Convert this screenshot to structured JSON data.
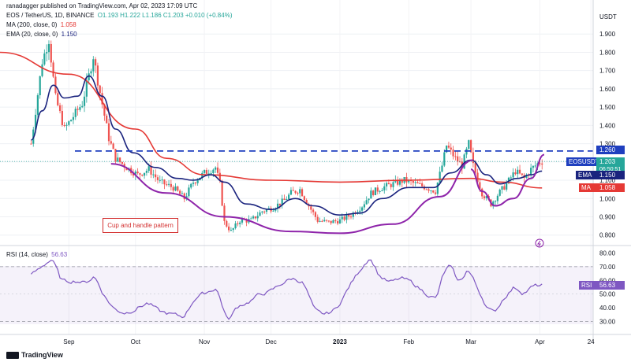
{
  "header": {
    "source": "ranadagger published on TradingView.com, Apr 02, 2023 17:09 UTC",
    "symbol_line": "EOS / TetherUS, 1D, BINANCE",
    "ohlc": "O1.193  H1.222  L1.186  C1.203  +0.010 (+0.84%)",
    "ma_label": "MA (200, close, 0)",
    "ma_value": "1.058",
    "ema_label": "EMA (20, close, 0)",
    "ema_value": "1.150",
    "rsi_label": "RSI (14, close)",
    "rsi_value": "56.63",
    "currency": "USDT"
  },
  "annotation": {
    "text": "Cup and handle pattern"
  },
  "tags": {
    "resistance": "1.260",
    "symbol": "EOSUSDT",
    "price": "1.203",
    "countdown": "06:50:51",
    "ema_name": "EMA",
    "ema_value": "1.150",
    "ma_name": "MA",
    "ma_value": "1.058",
    "rsi_name": "RSI",
    "rsi_value": "56.63"
  },
  "logo": "TradingView",
  "colors": {
    "up": "#26a69a",
    "down": "#ef5350",
    "ema": "#1a237e",
    "ma": "#e53935",
    "cup": "#8e24aa",
    "rsi": "#7e57c2",
    "resistance": "#1f3fbf"
  },
  "chart_data": {
    "type": "candlestick",
    "title": "EOS / TetherUS, 1D, BINANCE",
    "ylabel": "USDT",
    "y_ticks": [
      "0.800",
      "0.900",
      "1.000",
      "1.100",
      "1.200",
      "1.300",
      "1.400",
      "1.500",
      "1.600",
      "1.700",
      "1.800",
      "1.900"
    ],
    "x_ticks": [
      "Sep",
      "Oct",
      "Nov",
      "Dec",
      "2023",
      "Feb",
      "Mar",
      "Apr",
      "24"
    ],
    "ylim": [
      0.76,
      2.0
    ],
    "resistance": 1.26,
    "last": {
      "open": 1.193,
      "high": 1.222,
      "low": 1.186,
      "close": 1.203
    },
    "ema_20_last": 1.15,
    "ma_200_last": 1.058,
    "price_path": [
      [
        "2022-08-15",
        1.3
      ],
      [
        "2022-08-20",
        1.75
      ],
      [
        "2022-08-23",
        1.87
      ],
      [
        "2022-08-26",
        1.55
      ],
      [
        "2022-08-30",
        1.38
      ],
      [
        "2022-09-03",
        1.45
      ],
      [
        "2022-09-07",
        1.52
      ],
      [
        "2022-09-10",
        1.67
      ],
      [
        "2022-09-12",
        1.78
      ],
      [
        "2022-09-15",
        1.58
      ],
      [
        "2022-09-19",
        1.33
      ],
      [
        "2022-09-22",
        1.22
      ],
      [
        "2022-09-27",
        1.17
      ],
      [
        "2022-10-02",
        1.13
      ],
      [
        "2022-10-07",
        1.16
      ],
      [
        "2022-10-12",
        1.09
      ],
      [
        "2022-10-18",
        1.06
      ],
      [
        "2022-10-23",
        1.0
      ],
      [
        "2022-10-27",
        1.09
      ],
      [
        "2022-11-01",
        1.14
      ],
      [
        "2022-11-06",
        1.17
      ],
      [
        "2022-11-08",
        1.08
      ],
      [
        "2022-11-10",
        0.87
      ],
      [
        "2022-11-13",
        0.82
      ],
      [
        "2022-11-17",
        0.88
      ],
      [
        "2022-11-22",
        0.88
      ],
      [
        "2022-11-27",
        0.93
      ],
      [
        "2022-12-02",
        0.95
      ],
      [
        "2022-12-07",
        0.99
      ],
      [
        "2022-12-10",
        1.03
      ],
      [
        "2022-12-14",
        1.05
      ],
      [
        "2022-12-18",
        0.96
      ],
      [
        "2022-12-22",
        0.88
      ],
      [
        "2022-12-27",
        0.87
      ],
      [
        "2023-01-01",
        0.88
      ],
      [
        "2023-01-06",
        0.91
      ],
      [
        "2023-01-11",
        0.96
      ],
      [
        "2023-01-15",
        1.03
      ],
      [
        "2023-01-20",
        1.06
      ],
      [
        "2023-01-25",
        1.08
      ],
      [
        "2023-01-30",
        1.1
      ],
      [
        "2023-02-04",
        1.08
      ],
      [
        "2023-02-09",
        1.06
      ],
      [
        "2023-02-13",
        1.04
      ],
      [
        "2023-02-16",
        1.18
      ],
      [
        "2023-02-18",
        1.29
      ],
      [
        "2023-02-22",
        1.22
      ],
      [
        "2023-02-25",
        1.18
      ],
      [
        "2023-02-28",
        1.3
      ],
      [
        "2023-03-02",
        1.18
      ],
      [
        "2023-03-06",
        1.03
      ],
      [
        "2023-03-10",
        0.97
      ],
      [
        "2023-03-13",
        1.02
      ],
      [
        "2023-03-17",
        1.08
      ],
      [
        "2023-03-21",
        1.15
      ],
      [
        "2023-03-25",
        1.11
      ],
      [
        "2023-03-28",
        1.16
      ],
      [
        "2023-04-01",
        1.2
      ],
      [
        "2023-04-02",
        1.203
      ]
    ],
    "ema_path": [
      [
        "2022-08-15",
        1.32
      ],
      [
        "2022-08-20",
        1.48
      ],
      [
        "2022-08-25",
        1.62
      ],
      [
        "2022-08-30",
        1.55
      ],
      [
        "2022-09-05",
        1.56
      ],
      [
        "2022-09-10",
        1.67
      ],
      [
        "2022-09-16",
        1.56
      ],
      [
        "2022-09-22",
        1.38
      ],
      [
        "2022-09-30",
        1.25
      ],
      [
        "2022-10-10",
        1.17
      ],
      [
        "2022-10-20",
        1.11
      ],
      [
        "2022-10-27",
        1.1
      ],
      [
        "2022-11-04",
        1.13
      ],
      [
        "2022-11-10",
        1.09
      ],
      [
        "2022-11-20",
        0.97
      ],
      [
        "2022-12-01",
        0.94
      ],
      [
        "2022-12-12",
        1.0
      ],
      [
        "2022-12-20",
        0.96
      ],
      [
        "2023-01-01",
        0.91
      ],
      [
        "2023-01-10",
        0.92
      ],
      [
        "2023-01-20",
        1.0
      ],
      [
        "2023-02-01",
        1.06
      ],
      [
        "2023-02-12",
        1.06
      ],
      [
        "2023-02-20",
        1.14
      ],
      [
        "2023-03-01",
        1.21
      ],
      [
        "2023-03-08",
        1.13
      ],
      [
        "2023-03-14",
        1.08
      ],
      [
        "2023-03-22",
        1.11
      ],
      [
        "2023-03-28",
        1.13
      ],
      [
        "2023-04-02",
        1.15
      ]
    ],
    "ma_path": [
      [
        "2022-08-01",
        1.8
      ],
      [
        "2022-09-01",
        1.68
      ],
      [
        "2022-10-01",
        1.38
      ],
      [
        "2022-10-15",
        1.22
      ],
      [
        "2022-11-01",
        1.13
      ],
      [
        "2022-12-01",
        1.1
      ],
      [
        "2023-01-01",
        1.09
      ],
      [
        "2023-02-01",
        1.1
      ],
      [
        "2023-03-01",
        1.11
      ],
      [
        "2023-03-15",
        1.09
      ],
      [
        "2023-04-02",
        1.058
      ]
    ],
    "cup_path": [
      [
        "2022-09-20",
        1.19
      ],
      [
        "2022-10-15",
        1.03
      ],
      [
        "2022-11-10",
        0.9
      ],
      [
        "2022-12-10",
        0.82
      ],
      [
        "2023-01-01",
        0.81
      ],
      [
        "2023-01-25",
        0.86
      ],
      [
        "2023-02-15",
        1.01
      ],
      [
        "2023-03-02",
        1.21
      ]
    ],
    "handle_path": [
      [
        "2023-03-01",
        1.16
      ],
      [
        "2023-03-06",
        1.04
      ],
      [
        "2023-03-12",
        0.96
      ],
      [
        "2023-03-20",
        1.0
      ],
      [
        "2023-03-28",
        1.11
      ],
      [
        "2023-04-03",
        1.24
      ]
    ],
    "rsi": {
      "y_ticks": [
        "30.00",
        "40.00",
        "50.00",
        "60.00",
        "70.00",
        "80.00"
      ],
      "levels": [
        70,
        30
      ],
      "last": 56.63,
      "path": [
        [
          "2022-08-15",
          65
        ],
        [
          "2022-08-20",
          72
        ],
        [
          "2022-08-24",
          76
        ],
        [
          "2022-08-28",
          58
        ],
        [
          "2022-09-03",
          60
        ],
        [
          "2022-09-08",
          58
        ],
        [
          "2022-09-12",
          64
        ],
        [
          "2022-09-16",
          48
        ],
        [
          "2022-09-21",
          38
        ],
        [
          "2022-09-26",
          36
        ],
        [
          "2022-10-01",
          40
        ],
        [
          "2022-10-06",
          44
        ],
        [
          "2022-10-11",
          37
        ],
        [
          "2022-10-17",
          35
        ],
        [
          "2022-10-22",
          33
        ],
        [
          "2022-10-27",
          48
        ],
        [
          "2022-11-02",
          52
        ],
        [
          "2022-11-06",
          55
        ],
        [
          "2022-11-09",
          37
        ],
        [
          "2022-11-11",
          28
        ],
        [
          "2022-11-15",
          42
        ],
        [
          "2022-11-20",
          44
        ],
        [
          "2022-11-25",
          50
        ],
        [
          "2022-11-30",
          52
        ],
        [
          "2022-12-05",
          58
        ],
        [
          "2022-12-10",
          62
        ],
        [
          "2022-12-15",
          58
        ],
        [
          "2022-12-20",
          36
        ],
        [
          "2022-12-25",
          35
        ],
        [
          "2022-12-30",
          40
        ],
        [
          "2023-01-05",
          58
        ],
        [
          "2023-01-10",
          70
        ],
        [
          "2023-01-14",
          78
        ],
        [
          "2023-01-18",
          62
        ],
        [
          "2023-01-23",
          58
        ],
        [
          "2023-01-28",
          62
        ],
        [
          "2023-02-02",
          58
        ],
        [
          "2023-02-08",
          50
        ],
        [
          "2023-02-13",
          46
        ],
        [
          "2023-02-16",
          68
        ],
        [
          "2023-02-19",
          72
        ],
        [
          "2023-02-23",
          56
        ],
        [
          "2023-02-27",
          70
        ],
        [
          "2023-03-03",
          54
        ],
        [
          "2023-03-08",
          38
        ],
        [
          "2023-03-11",
          36
        ],
        [
          "2023-03-15",
          48
        ],
        [
          "2023-03-20",
          56
        ],
        [
          "2023-03-24",
          50
        ],
        [
          "2023-03-28",
          56
        ],
        [
          "2023-04-02",
          56.63
        ]
      ]
    }
  }
}
